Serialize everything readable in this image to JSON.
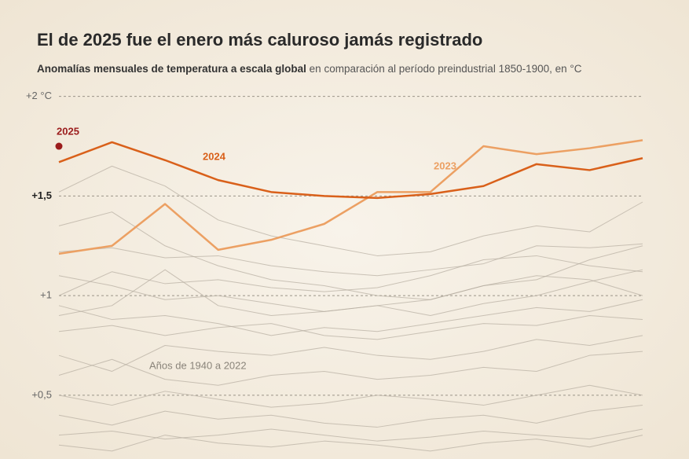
{
  "chart_data": {
    "type": "line",
    "title": "El de 2025 fue el enero más caluroso jamás registrado",
    "subtitle_bold": "Anomalías mensuales de temperatura a escala global",
    "subtitle": "en comparación al período preindustrial 1850-1900, en °C",
    "annotation": "Años de 1940 a 2022",
    "categories": [
      null,
      null,
      null,
      null,
      null,
      null,
      null,
      null,
      null,
      null,
      null,
      null
    ],
    "ylim": [
      0.18,
      2.1
    ],
    "yticks": [
      {
        "value": 2,
        "label": "+2 °C"
      },
      {
        "value": 1.5,
        "label": "+1,5"
      },
      {
        "value": 1,
        "label": "+1"
      },
      {
        "value": 0.5,
        "label": "+0,5"
      }
    ],
    "grid": true,
    "series": [
      {
        "color": "#b5ada0",
        "values": [
          1.22,
          1.24,
          1.19,
          1.2,
          1.15,
          1.12,
          1.1,
          1.13,
          1.16,
          1.25,
          1.24,
          1.26
        ]
      },
      {
        "color": "#b5ada0",
        "values": [
          1.52,
          1.65,
          1.55,
          1.38,
          1.3,
          1.25,
          1.2,
          1.22,
          1.3,
          1.35,
          1.32,
          1.47
        ]
      },
      {
        "color": "#b5ada0",
        "values": [
          1.0,
          1.12,
          1.06,
          1.08,
          1.04,
          1.02,
          1.04,
          1.1,
          1.18,
          1.2,
          1.15,
          1.12
        ]
      },
      {
        "color": "#b5ada0",
        "values": [
          1.35,
          1.42,
          1.25,
          1.15,
          1.08,
          1.05,
          1.0,
          0.98,
          1.05,
          1.1,
          1.08,
          1.0
        ]
      },
      {
        "color": "#b5ada0",
        "values": [
          0.9,
          0.95,
          1.13,
          0.95,
          0.9,
          0.92,
          0.95,
          0.9,
          0.96,
          1.0,
          1.07,
          1.13
        ]
      },
      {
        "color": "#b5ada0",
        "values": [
          0.82,
          0.85,
          0.8,
          0.84,
          0.86,
          0.8,
          0.78,
          0.82,
          0.86,
          0.85,
          0.9,
          0.88
        ]
      },
      {
        "color": "#b5ada0",
        "values": [
          0.7,
          0.62,
          0.75,
          0.72,
          0.7,
          0.74,
          0.7,
          0.68,
          0.72,
          0.78,
          0.75,
          0.8
        ]
      },
      {
        "color": "#b5ada0",
        "values": [
          0.6,
          0.68,
          0.58,
          0.55,
          0.6,
          0.62,
          0.58,
          0.6,
          0.64,
          0.62,
          0.7,
          0.72
        ]
      },
      {
        "color": "#b5ada0",
        "values": [
          0.5,
          0.45,
          0.52,
          0.48,
          0.44,
          0.46,
          0.5,
          0.48,
          0.45,
          0.5,
          0.55,
          0.5
        ]
      },
      {
        "color": "#b5ada0",
        "values": [
          0.4,
          0.35,
          0.42,
          0.38,
          0.4,
          0.36,
          0.34,
          0.38,
          0.4,
          0.36,
          0.42,
          0.45
        ]
      },
      {
        "color": "#b5ada0",
        "values": [
          0.3,
          0.32,
          0.28,
          0.3,
          0.33,
          0.3,
          0.27,
          0.29,
          0.32,
          0.3,
          0.28,
          0.33
        ]
      },
      {
        "color": "#b5ada0",
        "values": [
          0.25,
          0.22,
          0.3,
          0.26,
          0.24,
          0.27,
          0.25,
          0.22,
          0.26,
          0.28,
          0.24,
          0.3
        ]
      },
      {
        "color": "#b5ada0",
        "values": [
          1.1,
          1.05,
          0.98,
          1.0,
          0.96,
          0.92,
          0.95,
          0.98,
          1.05,
          1.08,
          1.18,
          1.25
        ]
      },
      {
        "color": "#b5ada0",
        "values": [
          0.95,
          0.88,
          0.9,
          0.86,
          0.8,
          0.84,
          0.82,
          0.86,
          0.9,
          0.94,
          0.92,
          0.98
        ]
      },
      {
        "name": "2023",
        "color": "#eca063",
        "values": [
          1.21,
          1.25,
          1.46,
          1.23,
          1.28,
          1.36,
          1.52,
          1.52,
          1.75,
          1.71,
          1.74,
          1.78
        ]
      },
      {
        "name": "2024",
        "color": "#d9601a",
        "values": [
          1.67,
          1.77,
          1.68,
          1.58,
          1.52,
          1.5,
          1.49,
          1.51,
          1.55,
          1.66,
          1.63,
          1.69
        ]
      },
      {
        "name": "2025",
        "color": "#9b1c1c",
        "values": [
          1.75,
          null,
          null,
          null,
          null,
          null,
          null,
          null,
          null,
          null,
          null,
          null
        ]
      }
    ]
  }
}
